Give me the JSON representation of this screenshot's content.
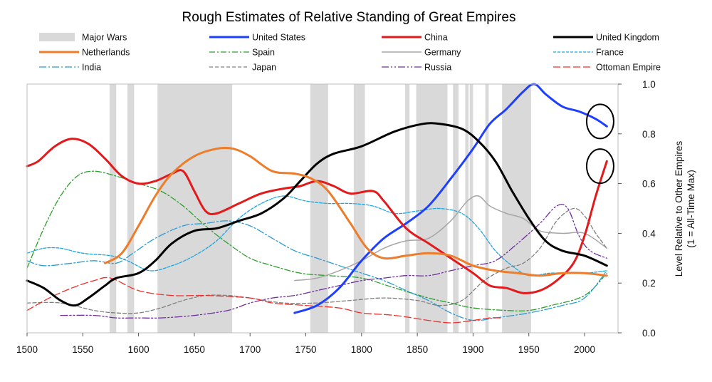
{
  "chart_data": {
    "type": "line",
    "title": "Rough Estimates of Relative Standing of Great Empires",
    "ylabel": "Level Relative to Other Empires",
    "ylabel2": "(1 = All-Time Max)",
    "xlim": [
      1500,
      2030
    ],
    "ylim": [
      0,
      1.0
    ],
    "y_axis_side": "right",
    "grid": false,
    "legend_position": "top",
    "x_ticks": [
      1500,
      1550,
      1600,
      1650,
      1700,
      1750,
      1800,
      1850,
      1900,
      1950,
      2000
    ],
    "y_ticks": [
      0.0,
      0.2,
      0.4,
      0.6,
      0.8,
      1.0
    ],
    "y_tick_labels": [
      "0.0",
      "0.2",
      "0.4",
      "0.6",
      "0.8",
      "1.0"
    ],
    "wars_label": "Major Wars",
    "wars_color": "#d9d9d9",
    "major_wars": [
      [
        1574,
        1580
      ],
      [
        1590,
        1596
      ],
      [
        1617,
        1684
      ],
      [
        1754,
        1770
      ],
      [
        1793,
        1803
      ],
      [
        1839,
        1843
      ],
      [
        1849,
        1877
      ],
      [
        1882,
        1887
      ],
      [
        1893,
        1896
      ],
      [
        1897,
        1900
      ],
      [
        1911,
        1914
      ],
      [
        1926,
        1952
      ]
    ],
    "series": [
      {
        "name": "United States",
        "color": "#1f3fff",
        "width": 3,
        "dash": "",
        "points": [
          [
            1740,
            0.08
          ],
          [
            1760,
            0.11
          ],
          [
            1780,
            0.18
          ],
          [
            1800,
            0.29
          ],
          [
            1820,
            0.38
          ],
          [
            1840,
            0.44
          ],
          [
            1860,
            0.51
          ],
          [
            1880,
            0.62
          ],
          [
            1900,
            0.74
          ],
          [
            1915,
            0.84
          ],
          [
            1930,
            0.9
          ],
          [
            1945,
            0.97
          ],
          [
            1955,
            1.0
          ],
          [
            1965,
            0.96
          ],
          [
            1980,
            0.91
          ],
          [
            1995,
            0.89
          ],
          [
            2010,
            0.86
          ],
          [
            2020,
            0.83
          ]
        ]
      },
      {
        "name": "China",
        "color": "#e31a1c",
        "width": 3,
        "dash": "",
        "points": [
          [
            1500,
            0.67
          ],
          [
            1510,
            0.69
          ],
          [
            1525,
            0.75
          ],
          [
            1540,
            0.78
          ],
          [
            1555,
            0.76
          ],
          [
            1570,
            0.7
          ],
          [
            1585,
            0.63
          ],
          [
            1600,
            0.6
          ],
          [
            1615,
            0.61
          ],
          [
            1630,
            0.64
          ],
          [
            1640,
            0.65
          ],
          [
            1650,
            0.57
          ],
          [
            1660,
            0.49
          ],
          [
            1670,
            0.48
          ],
          [
            1690,
            0.52
          ],
          [
            1710,
            0.56
          ],
          [
            1730,
            0.58
          ],
          [
            1745,
            0.59
          ],
          [
            1760,
            0.61
          ],
          [
            1775,
            0.59
          ],
          [
            1790,
            0.56
          ],
          [
            1810,
            0.57
          ],
          [
            1820,
            0.53
          ],
          [
            1840,
            0.42
          ],
          [
            1860,
            0.36
          ],
          [
            1880,
            0.3
          ],
          [
            1900,
            0.24
          ],
          [
            1915,
            0.19
          ],
          [
            1930,
            0.18
          ],
          [
            1945,
            0.16
          ],
          [
            1960,
            0.17
          ],
          [
            1975,
            0.21
          ],
          [
            1990,
            0.28
          ],
          [
            2000,
            0.39
          ],
          [
            2010,
            0.55
          ],
          [
            2020,
            0.69
          ]
        ]
      },
      {
        "name": "United Kingdom",
        "color": "#000000",
        "width": 3,
        "dash": "",
        "points": [
          [
            1500,
            0.21
          ],
          [
            1515,
            0.18
          ],
          [
            1530,
            0.13
          ],
          [
            1543,
            0.11
          ],
          [
            1555,
            0.14
          ],
          [
            1570,
            0.19
          ],
          [
            1580,
            0.22
          ],
          [
            1600,
            0.24
          ],
          [
            1615,
            0.29
          ],
          [
            1630,
            0.36
          ],
          [
            1650,
            0.41
          ],
          [
            1670,
            0.42
          ],
          [
            1690,
            0.45
          ],
          [
            1710,
            0.48
          ],
          [
            1730,
            0.54
          ],
          [
            1745,
            0.61
          ],
          [
            1760,
            0.68
          ],
          [
            1775,
            0.72
          ],
          [
            1800,
            0.75
          ],
          [
            1830,
            0.81
          ],
          [
            1855,
            0.84
          ],
          [
            1870,
            0.84
          ],
          [
            1890,
            0.82
          ],
          [
            1905,
            0.77
          ],
          [
            1920,
            0.69
          ],
          [
            1935,
            0.57
          ],
          [
            1950,
            0.46
          ],
          [
            1965,
            0.37
          ],
          [
            1980,
            0.33
          ],
          [
            2000,
            0.31
          ],
          [
            2020,
            0.27
          ]
        ]
      },
      {
        "name": "Netherlands",
        "color": "#ee7d2b",
        "width": 3,
        "dash": "",
        "points": [
          [
            1570,
            0.28
          ],
          [
            1585,
            0.32
          ],
          [
            1600,
            0.43
          ],
          [
            1615,
            0.55
          ],
          [
            1630,
            0.64
          ],
          [
            1650,
            0.71
          ],
          [
            1670,
            0.74
          ],
          [
            1685,
            0.74
          ],
          [
            1700,
            0.71
          ],
          [
            1720,
            0.65
          ],
          [
            1740,
            0.64
          ],
          [
            1755,
            0.62
          ],
          [
            1770,
            0.57
          ],
          [
            1790,
            0.44
          ],
          [
            1805,
            0.34
          ],
          [
            1820,
            0.3
          ],
          [
            1840,
            0.31
          ],
          [
            1860,
            0.32
          ],
          [
            1880,
            0.31
          ],
          [
            1900,
            0.27
          ],
          [
            1920,
            0.25
          ],
          [
            1940,
            0.24
          ],
          [
            1960,
            0.23
          ],
          [
            1980,
            0.24
          ],
          [
            2000,
            0.24
          ],
          [
            2020,
            0.23
          ]
        ]
      },
      {
        "name": "Spain",
        "color": "#2ca02c",
        "width": 1.3,
        "dash": "8 3 2 3",
        "points": [
          [
            1500,
            0.26
          ],
          [
            1515,
            0.42
          ],
          [
            1530,
            0.55
          ],
          [
            1545,
            0.63
          ],
          [
            1560,
            0.65
          ],
          [
            1580,
            0.63
          ],
          [
            1600,
            0.6
          ],
          [
            1620,
            0.57
          ],
          [
            1640,
            0.51
          ],
          [
            1660,
            0.43
          ],
          [
            1680,
            0.36
          ],
          [
            1700,
            0.3
          ],
          [
            1720,
            0.27
          ],
          [
            1745,
            0.24
          ],
          [
            1770,
            0.23
          ],
          [
            1800,
            0.22
          ],
          [
            1830,
            0.18
          ],
          [
            1860,
            0.14
          ],
          [
            1880,
            0.12
          ],
          [
            1900,
            0.1
          ],
          [
            1930,
            0.09
          ],
          [
            1950,
            0.09
          ],
          [
            1970,
            0.11
          ],
          [
            2000,
            0.15
          ],
          [
            2020,
            0.24
          ]
        ]
      },
      {
        "name": "Germany",
        "color": "#a6a6a6",
        "width": 1.5,
        "dash": "",
        "points": [
          [
            1740,
            0.21
          ],
          [
            1760,
            0.22
          ],
          [
            1780,
            0.25
          ],
          [
            1800,
            0.29
          ],
          [
            1820,
            0.34
          ],
          [
            1840,
            0.37
          ],
          [
            1860,
            0.38
          ],
          [
            1880,
            0.45
          ],
          [
            1895,
            0.53
          ],
          [
            1905,
            0.55
          ],
          [
            1915,
            0.51
          ],
          [
            1930,
            0.48
          ],
          [
            1945,
            0.46
          ],
          [
            1960,
            0.41
          ],
          [
            1980,
            0.4
          ],
          [
            2000,
            0.4
          ],
          [
            2020,
            0.34
          ]
        ]
      },
      {
        "name": "France",
        "color": "#1fa6e0",
        "width": 1.3,
        "dash": "4 2",
        "points": [
          [
            1500,
            0.32
          ],
          [
            1515,
            0.34
          ],
          [
            1530,
            0.34
          ],
          [
            1550,
            0.32
          ],
          [
            1575,
            0.31
          ],
          [
            1590,
            0.29
          ],
          [
            1610,
            0.25
          ],
          [
            1630,
            0.27
          ],
          [
            1650,
            0.31
          ],
          [
            1670,
            0.37
          ],
          [
            1690,
            0.46
          ],
          [
            1710,
            0.52
          ],
          [
            1730,
            0.55
          ],
          [
            1750,
            0.53
          ],
          [
            1770,
            0.52
          ],
          [
            1790,
            0.52
          ],
          [
            1810,
            0.51
          ],
          [
            1830,
            0.48
          ],
          [
            1850,
            0.49
          ],
          [
            1870,
            0.5
          ],
          [
            1890,
            0.48
          ],
          [
            1905,
            0.42
          ],
          [
            1920,
            0.33
          ],
          [
            1935,
            0.27
          ],
          [
            1950,
            0.23
          ],
          [
            1970,
            0.24
          ],
          [
            2000,
            0.24
          ],
          [
            2020,
            0.25
          ]
        ]
      },
      {
        "name": "India",
        "color": "#2b9bd4",
        "width": 1.3,
        "dash": "10 3 2 3",
        "points": [
          [
            1500,
            0.29
          ],
          [
            1515,
            0.27
          ],
          [
            1540,
            0.28
          ],
          [
            1560,
            0.29
          ],
          [
            1580,
            0.28
          ],
          [
            1595,
            0.32
          ],
          [
            1615,
            0.38
          ],
          [
            1640,
            0.43
          ],
          [
            1660,
            0.44
          ],
          [
            1680,
            0.45
          ],
          [
            1700,
            0.43
          ],
          [
            1720,
            0.38
          ],
          [
            1740,
            0.33
          ],
          [
            1760,
            0.3
          ],
          [
            1780,
            0.27
          ],
          [
            1800,
            0.24
          ],
          [
            1820,
            0.21
          ],
          [
            1840,
            0.17
          ],
          [
            1860,
            0.13
          ],
          [
            1880,
            0.08
          ],
          [
            1900,
            0.05
          ],
          [
            1920,
            0.06
          ],
          [
            1950,
            0.08
          ],
          [
            1980,
            0.11
          ],
          [
            2000,
            0.14
          ],
          [
            2020,
            0.25
          ]
        ]
      },
      {
        "name": "Japan",
        "color": "#808080",
        "width": 1.3,
        "dash": "5 3",
        "points": [
          [
            1500,
            0.12
          ],
          [
            1530,
            0.12
          ],
          [
            1560,
            0.09
          ],
          [
            1580,
            0.08
          ],
          [
            1600,
            0.08
          ],
          [
            1620,
            0.1
          ],
          [
            1640,
            0.13
          ],
          [
            1660,
            0.15
          ],
          [
            1680,
            0.15
          ],
          [
            1700,
            0.14
          ],
          [
            1730,
            0.12
          ],
          [
            1760,
            0.12
          ],
          [
            1790,
            0.13
          ],
          [
            1820,
            0.14
          ],
          [
            1850,
            0.13
          ],
          [
            1870,
            0.11
          ],
          [
            1890,
            0.13
          ],
          [
            1910,
            0.21
          ],
          [
            1930,
            0.26
          ],
          [
            1945,
            0.28
          ],
          [
            1960,
            0.34
          ],
          [
            1975,
            0.45
          ],
          [
            1990,
            0.5
          ],
          [
            2000,
            0.47
          ],
          [
            2010,
            0.4
          ],
          [
            2020,
            0.34
          ]
        ]
      },
      {
        "name": "Russia",
        "color": "#7030a0",
        "width": 1.3,
        "dash": "10 3 2 3 2 3",
        "points": [
          [
            1530,
            0.07
          ],
          [
            1560,
            0.07
          ],
          [
            1580,
            0.06
          ],
          [
            1600,
            0.06
          ],
          [
            1620,
            0.06
          ],
          [
            1650,
            0.07
          ],
          [
            1680,
            0.09
          ],
          [
            1700,
            0.12
          ],
          [
            1720,
            0.14
          ],
          [
            1740,
            0.15
          ],
          [
            1760,
            0.17
          ],
          [
            1780,
            0.19
          ],
          [
            1800,
            0.21
          ],
          [
            1820,
            0.22
          ],
          [
            1840,
            0.23
          ],
          [
            1860,
            0.23
          ],
          [
            1880,
            0.25
          ],
          [
            1900,
            0.27
          ],
          [
            1920,
            0.29
          ],
          [
            1940,
            0.36
          ],
          [
            1960,
            0.44
          ],
          [
            1975,
            0.51
          ],
          [
            1985,
            0.5
          ],
          [
            1995,
            0.39
          ],
          [
            2005,
            0.33
          ],
          [
            2020,
            0.3
          ]
        ]
      },
      {
        "name": "Ottoman Empire",
        "color": "#f0302a",
        "width": 1.3,
        "dash": "10 4",
        "points": [
          [
            1500,
            0.09
          ],
          [
            1520,
            0.14
          ],
          [
            1540,
            0.18
          ],
          [
            1560,
            0.21
          ],
          [
            1575,
            0.22
          ],
          [
            1600,
            0.17
          ],
          [
            1630,
            0.15
          ],
          [
            1660,
            0.15
          ],
          [
            1700,
            0.14
          ],
          [
            1720,
            0.12
          ],
          [
            1750,
            0.11
          ],
          [
            1780,
            0.1
          ],
          [
            1800,
            0.08
          ],
          [
            1830,
            0.07
          ],
          [
            1860,
            0.05
          ],
          [
            1880,
            0.04
          ],
          [
            1900,
            0.05
          ],
          [
            1915,
            0.06
          ],
          [
            1925,
            0.06
          ]
        ]
      }
    ],
    "annotations": [
      {
        "type": "ellipse",
        "target": "United States",
        "at": [
          2014,
          0.85
        ]
      },
      {
        "type": "ellipse",
        "target": "China",
        "at": [
          2014,
          0.67
        ]
      }
    ]
  }
}
